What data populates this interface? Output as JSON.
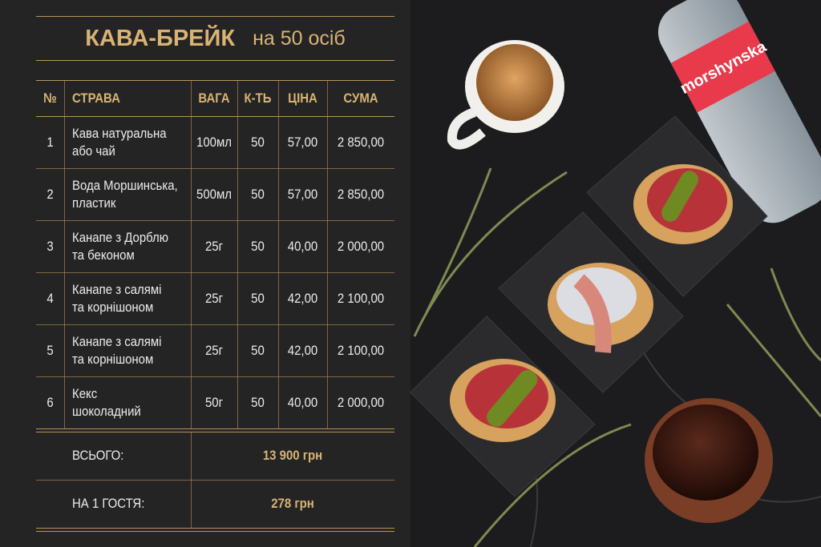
{
  "header": {
    "title": "КАВА-БРЕЙК",
    "subtitle": "на 50 осіб"
  },
  "table": {
    "columns": [
      "№",
      "СТРАВА",
      "ВАГА",
      "К-ТЬ",
      "ЦІНА",
      "СУМА"
    ],
    "rows": [
      [
        "1",
        [
          "Кава натуральна",
          "або чай"
        ],
        "100мл",
        "50",
        "57,00",
        "2 850,00"
      ],
      [
        "2",
        [
          "Вода Моршинська,",
          "пластик"
        ],
        "500мл",
        "50",
        "57,00",
        "2 850,00"
      ],
      [
        "3",
        [
          "Канапе з Дорблю",
          "та беконом"
        ],
        "25г",
        "50",
        "40,00",
        "2 000,00"
      ],
      [
        "4",
        [
          "Канапе з салямі",
          "та корнішоном"
        ],
        "25г",
        "50",
        "42,00",
        "2 100,00"
      ],
      [
        "5",
        [
          "Канапе з салямі",
          "та корнішоном"
        ],
        "25г",
        "50",
        "42,00",
        "2 100,00"
      ],
      [
        "6",
        [
          "Кекс",
          "шоколадний"
        ],
        "50г",
        "50",
        "40,00",
        "2 000,00"
      ]
    ]
  },
  "totals": [
    {
      "label": "ВСЬОГО:",
      "value": "13 900 грн"
    },
    {
      "label": "НА 1 ГОСТЯ:",
      "value": "278 грн"
    }
  ],
  "photo": {
    "brand": "morshynska"
  }
}
